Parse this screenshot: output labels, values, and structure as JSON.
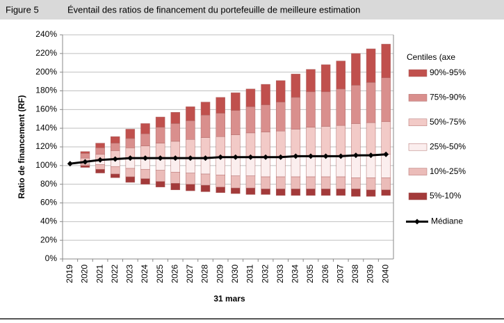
{
  "chart_data": {
    "type": "floating-stacked-bar",
    "figure_label": "Figure 5",
    "title": "Éventail des ratios de financement du portefeuille de meilleure estimation",
    "y_label": "Ratio de financement (RF)",
    "x_label": "31 mars",
    "legend_title": "Centiles (axe",
    "categories": [
      "2019",
      "2020",
      "2021",
      "2022",
      "2023",
      "2024",
      "2025",
      "2026",
      "2027",
      "2028",
      "2029",
      "2030",
      "2031",
      "2032",
      "2033",
      "2034",
      "2035",
      "2036",
      "2037",
      "2038",
      "2039",
      "2040"
    ],
    "base": [
      102,
      98,
      92,
      87,
      82,
      80,
      77,
      74,
      73,
      72,
      71,
      70,
      69,
      69,
      68,
      68,
      68,
      68,
      68,
      67,
      67,
      68
    ],
    "series": [
      {
        "name": "5%-10%",
        "color": "#a33a3a",
        "values": [
          0,
          2,
          4,
          4,
          6,
          6,
          6,
          7,
          7,
          7,
          6,
          6,
          7,
          6,
          7,
          7,
          7,
          7,
          7,
          8,
          7,
          6
        ]
      },
      {
        "name": "10%-25%",
        "color": "#ebbcb9",
        "values": [
          0,
          2,
          5,
          8,
          9,
          10,
          12,
          12,
          12,
          12,
          13,
          13,
          13,
          13,
          13,
          13,
          13,
          13,
          13,
          12,
          13,
          13
        ]
      },
      {
        "name": "25%-50%",
        "color": "#fbeeee",
        "values": [
          0,
          2,
          5,
          8,
          11,
          12,
          13,
          15,
          16,
          17,
          19,
          20,
          20,
          21,
          21,
          21,
          22,
          22,
          22,
          23,
          24,
          25
        ]
      },
      {
        "name": "50%-75%",
        "color": "#f2cac7",
        "values": [
          0,
          4,
          6,
          9,
          11,
          13,
          16,
          18,
          20,
          22,
          22,
          24,
          26,
          27,
          28,
          30,
          31,
          32,
          33,
          35,
          35,
          35
        ]
      },
      {
        "name": "75%-90%",
        "color": "#d98f8d",
        "values": [
          0,
          5,
          7,
          8,
          10,
          13,
          17,
          19,
          20,
          24,
          25,
          26,
          28,
          29,
          31,
          34,
          38,
          37,
          39,
          41,
          43,
          47
        ]
      },
      {
        "name": "90%-95%",
        "color": "#c0504d",
        "values": [
          0,
          2,
          5,
          7,
          10,
          11,
          11,
          12,
          15,
          14,
          17,
          19,
          19,
          22,
          23,
          25,
          24,
          29,
          30,
          34,
          36,
          36
        ]
      }
    ],
    "line_series": {
      "name": "Médiane",
      "color": "#000000",
      "values": [
        102,
        104,
        106,
        107,
        108,
        108,
        108,
        108,
        108,
        108,
        109,
        109,
        109,
        109,
        109,
        110,
        110,
        110,
        110,
        111,
        111,
        112
      ]
    },
    "ylim": [
      0,
      240
    ],
    "yticks": [
      {
        "value": 0,
        "label": "0%"
      },
      {
        "value": 20,
        "label": "20%"
      },
      {
        "value": 40,
        "label": "40%"
      },
      {
        "value": 60,
        "label": "60%"
      },
      {
        "value": 80,
        "label": "80%"
      },
      {
        "value": 100,
        "label": "100%"
      },
      {
        "value": 120,
        "label": "120%"
      },
      {
        "value": 140,
        "label": "140%"
      },
      {
        "value": 160,
        "label": "160%"
      },
      {
        "value": 180,
        "label": "180%"
      },
      {
        "value": 200,
        "label": "200%"
      },
      {
        "value": 220,
        "label": "220%"
      },
      {
        "value": 240,
        "label": "240%"
      }
    ]
  }
}
